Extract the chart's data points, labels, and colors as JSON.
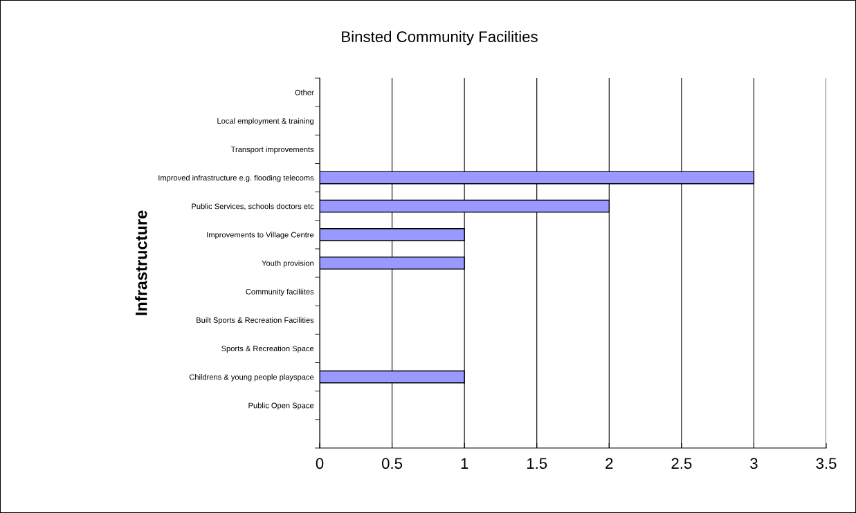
{
  "chart_data": {
    "type": "bar",
    "orientation": "horizontal",
    "title": "Binsted Community Facilities",
    "ylabel": "Infrastructure",
    "categories": [
      "Other",
      "Local employment & training",
      "Transport improvements",
      "Improved infrastructure e.g. flooding telecoms",
      "Public Services, schools doctors etc",
      "Improvements to Village Centre",
      "Youth provision",
      "Community faciliites",
      "Built Sports & Recreation Facilities",
      "Sports & Recreation Space",
      "Childrens & young people playspace",
      "Public Open Space",
      null
    ],
    "values": [
      0,
      0,
      0,
      3,
      2,
      1,
      1,
      0,
      0,
      0,
      1,
      0,
      null
    ],
    "color": "#9999ff",
    "xlim": [
      0,
      3.5
    ],
    "xticks": [
      0,
      0.5,
      1,
      1.5,
      2,
      2.5,
      3,
      3.5
    ],
    "grid": "x",
    "legend": false
  }
}
